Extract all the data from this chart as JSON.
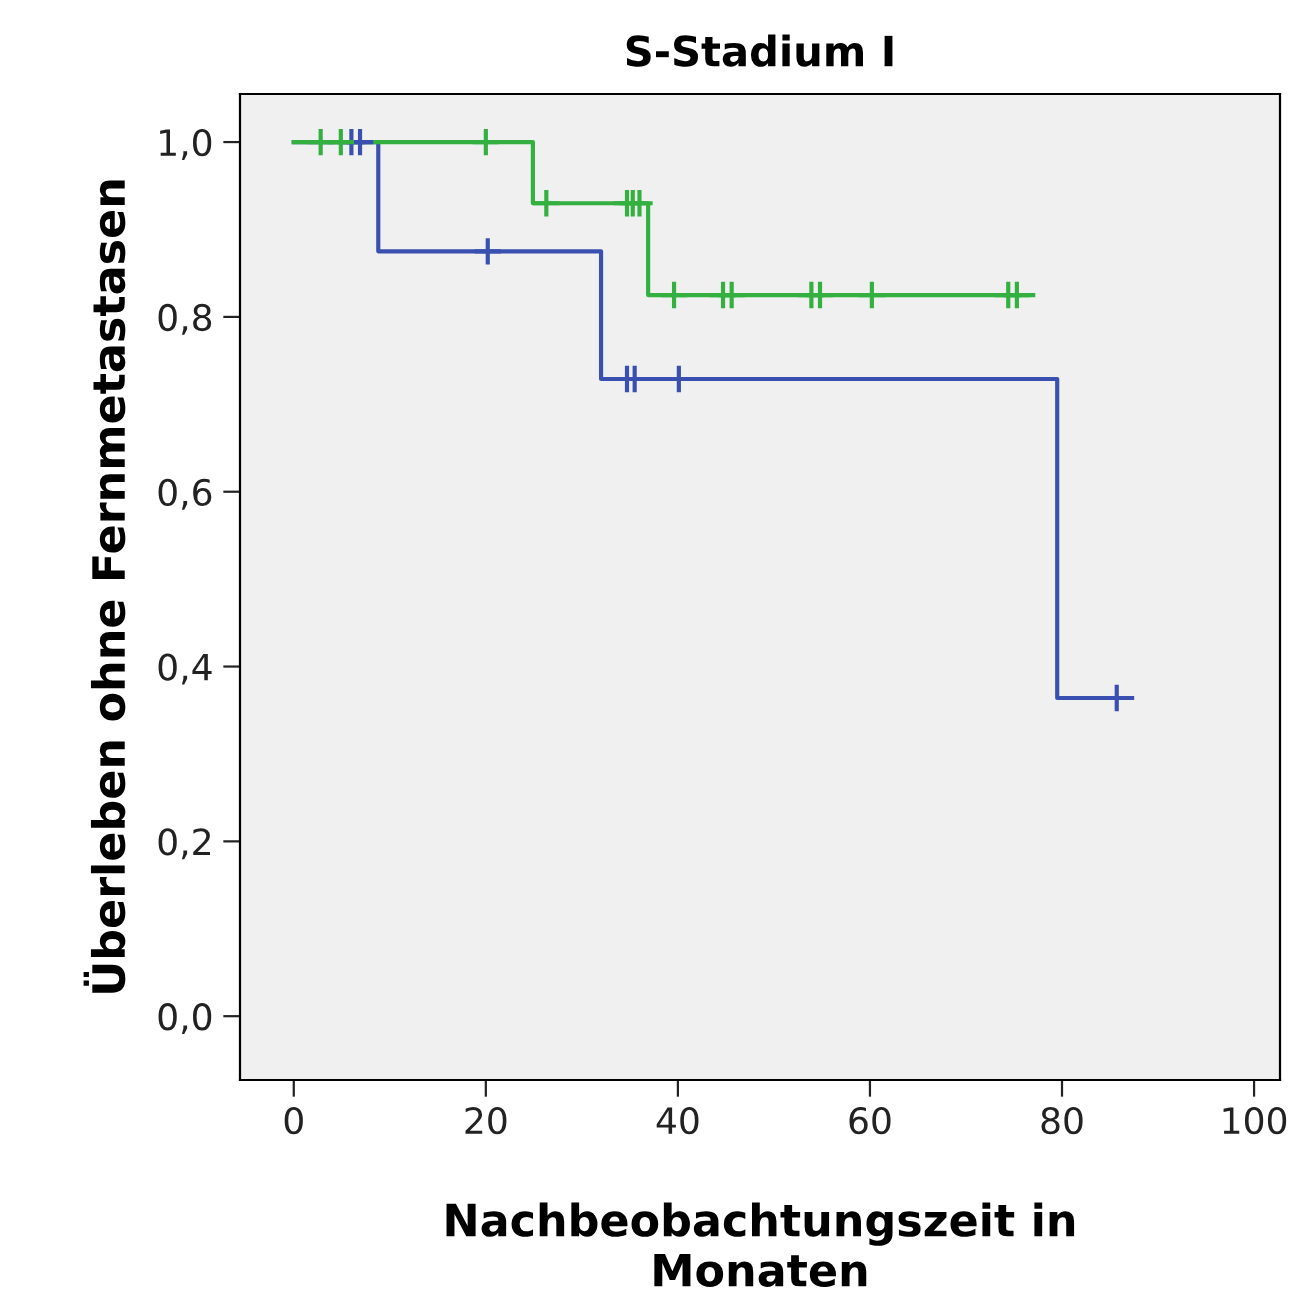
{
  "chart_data": {
    "type": "step",
    "title": "S-Stadium I",
    "xlabel": "Nachbeobachtungszeit in\nMonaten",
    "ylabel": "Überleben ohne Fernmetastasen",
    "xlim": [
      -5.6,
      102.7
    ],
    "ylim": [
      -0.073,
      1.055
    ],
    "xticks": [
      0,
      20,
      40,
      60,
      80,
      100
    ],
    "yticks": [
      {
        "value": 0,
        "label": "0,0"
      },
      {
        "value": 0.2,
        "label": "0,2"
      },
      {
        "value": 0.4,
        "label": "0,4"
      },
      {
        "value": 0.6,
        "label": "0,6"
      },
      {
        "value": 0.8,
        "label": "0,8"
      },
      {
        "value": 1,
        "label": "1,0"
      }
    ],
    "grid": false,
    "legend": false,
    "series": [
      {
        "color": "#3a50b0",
        "x": [
          0,
          8.8,
          32.0,
          79.5,
          87.3
        ],
        "values": [
          1,
          0.875,
          0.729,
          0.364,
          0.364
        ]
      },
      {
        "color": "#33b040",
        "x": [
          0,
          24.9,
          36.9,
          77.0
        ],
        "values": [
          1,
          0.93,
          0.825,
          0.825
        ]
      },
      {
        "type": "scatter",
        "marker": "cross",
        "color": "#3a50b0",
        "x": [
          6.0,
          6.9,
          20.2,
          34.7,
          35.5,
          40.1,
          85.7
        ],
        "values": [
          1,
          1,
          0.875,
          0.729,
          0.729,
          0.729,
          0.364
        ]
      },
      {
        "type": "scatter",
        "marker": "cross",
        "color": "#33b040",
        "x": [
          2.8,
          4.9,
          20,
          26.3,
          34.7,
          35.3,
          36.0,
          39.6,
          44.7,
          45.6,
          53.9,
          54.8,
          60.2,
          74.4,
          75.3
        ],
        "values": [
          1,
          1,
          1,
          0.93,
          0.93,
          0.93,
          0.93,
          0.825,
          0.825,
          0.825,
          0.825,
          0.825,
          0.825,
          0.825,
          0.825
        ]
      }
    ]
  }
}
